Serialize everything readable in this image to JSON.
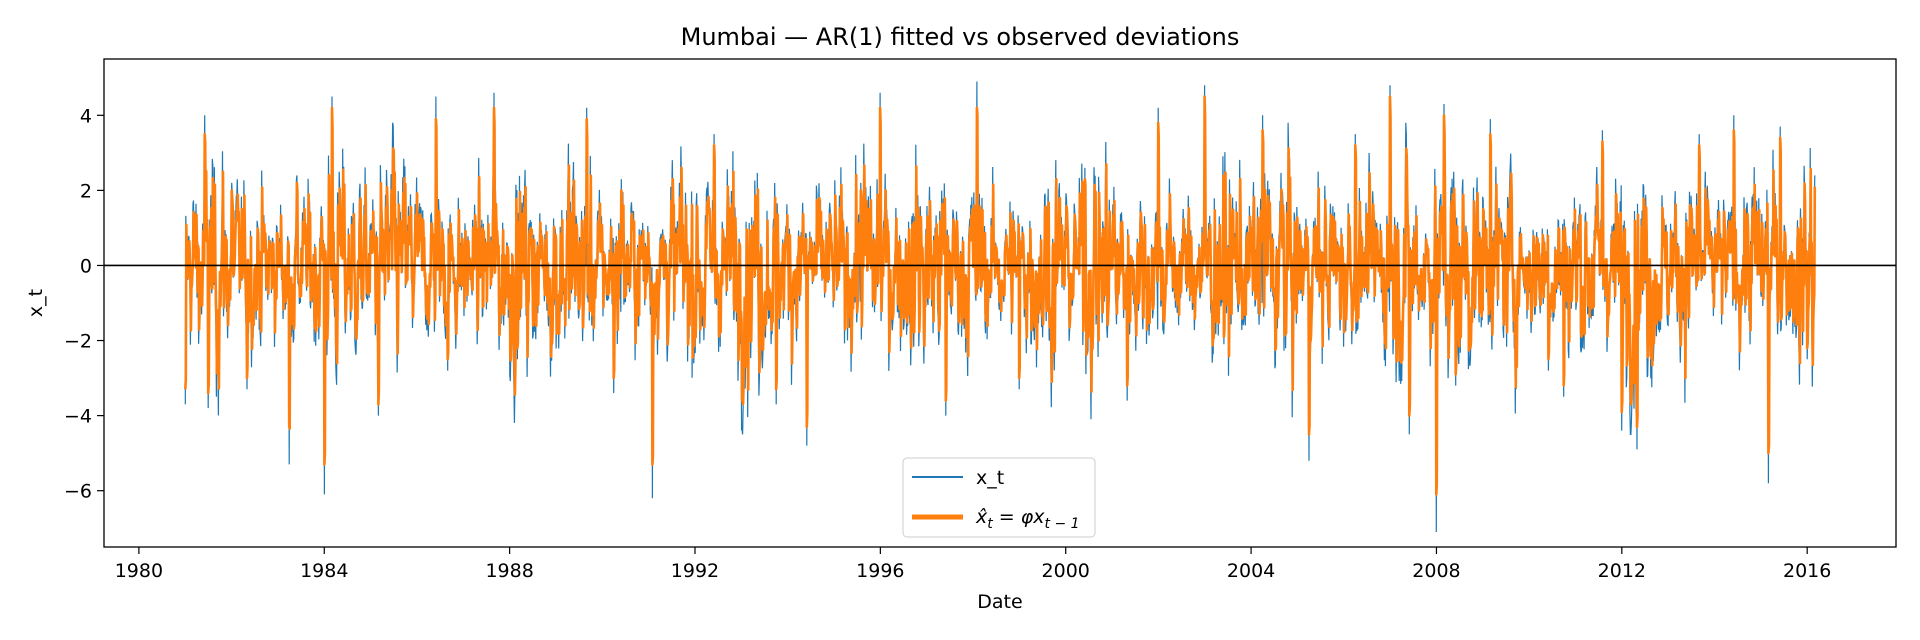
{
  "chart_data": {
    "type": "line",
    "title": "Mumbai — AR(1) fitted vs observed deviations",
    "xlabel": "Date",
    "ylabel": "x_t",
    "xlim": [
      "1979-04-01",
      "2017-12-01"
    ],
    "ylim": [
      -7.5,
      5.5
    ],
    "x_ticks": [
      "1980",
      "1984",
      "1988",
      "1992",
      "1996",
      "2000",
      "2004",
      "2008",
      "2012",
      "2016"
    ],
    "y_ticks": [
      4,
      2,
      0,
      -2,
      -4,
      -6
    ],
    "y_tick_labels": [
      "4",
      "2",
      "0",
      "−2",
      "−4",
      "−6"
    ],
    "zero_line": 0,
    "legend": {
      "placement": "lower center",
      "entries": [
        {
          "label": "x_t",
          "color": "#1f77b4"
        },
        {
          "label": "x̂_t = φx_{t−1}",
          "color": "#ff7f0e"
        }
      ]
    },
    "series": [
      {
        "name": "x_t",
        "color": "#1f77b4",
        "x": [
          "1981-01-01",
          "1981-06-01",
          "1981-07-01",
          "1982-01-01",
          "1982-05-01",
          "1983-04-01",
          "1983-06-01",
          "1984-01-01",
          "1984-03-01",
          "1985-03-01",
          "1986-06-01",
          "1986-09-01",
          "1987-09-01",
          "1988-03-01",
          "1989-09-01",
          "1990-04-01",
          "1990-06-01",
          "1991-02-01",
          "1992-06-01",
          "1993-10-01",
          "1994-06-01",
          "1995-08-01",
          "1996-01-01",
          "1997-06-01",
          "1998-02-01",
          "1999-01-01",
          "2000-06-01",
          "2001-05-01",
          "2002-01-01",
          "2003-01-01",
          "2003-06-01",
          "2004-04-01",
          "2005-04-01",
          "2006-04-01",
          "2007-01-01",
          "2007-06-01",
          "2008-01-01",
          "2008-03-01",
          "2008-06-01",
          "2009-03-01",
          "2010-06-01",
          "2010-10-01",
          "2011-08-01",
          "2012-01-01",
          "2012-05-01",
          "2013-09-01",
          "2014-06-01",
          "2015-03-01",
          "2015-06-01",
          "2016-01-01",
          "2016-03-01"
        ],
        "y": [
          -3.7,
          4.0,
          -3.8,
          2.2,
          -3.3,
          -5.3,
          2.4,
          -6.1,
          4.5,
          -4.0,
          4.5,
          -2.8,
          4.6,
          -2.5,
          4.2,
          -3.4,
          2.3,
          -6.2,
          3.5,
          -3.7,
          -4.8,
          2.2,
          4.6,
          -4.0,
          4.9,
          -3.3,
          2.6,
          -3.6,
          4.2,
          4.8,
          -2.1,
          4.0,
          -5.2,
          3.5,
          4.8,
          -4.5,
          -7.1,
          4.3,
          -3.2,
          3.9,
          -2.8,
          -3.5,
          3.6,
          -4.4,
          -4.9,
          3.5,
          4.0,
          -5.8,
          3.7,
          -2.5,
          2.4
        ],
        "note_dense": true
      },
      {
        "name": "x̂_t = φx_{t−1}",
        "color": "#ff7f0e",
        "x": [
          "1981-01-01",
          "1981-06-01",
          "1981-07-01",
          "1982-01-01",
          "1982-05-01",
          "1983-04-01",
          "1983-06-01",
          "1984-01-01",
          "1984-03-01",
          "1985-03-01",
          "1986-06-01",
          "1986-09-01",
          "1987-09-01",
          "1988-03-01",
          "1989-09-01",
          "1990-04-01",
          "1990-06-01",
          "1991-02-01",
          "1992-06-01",
          "1993-10-01",
          "1994-06-01",
          "1995-08-01",
          "1996-01-01",
          "1997-06-01",
          "1998-02-01",
          "1999-01-01",
          "2000-06-01",
          "2001-05-01",
          "2002-01-01",
          "2003-01-01",
          "2003-06-01",
          "2004-04-01",
          "2005-04-01",
          "2006-04-01",
          "2007-01-01",
          "2007-06-01",
          "2008-01-01",
          "2008-03-01",
          "2008-06-01",
          "2009-03-01",
          "2010-06-01",
          "2010-10-01",
          "2011-08-01",
          "2012-01-01",
          "2012-05-01",
          "2013-09-01",
          "2014-06-01",
          "2015-03-01",
          "2015-06-01",
          "2016-01-01",
          "2016-03-01"
        ],
        "y": [
          -3.3,
          3.5,
          -3.4,
          2.0,
          -3.0,
          -4.3,
          2.2,
          -5.3,
          4.2,
          -3.7,
          3.9,
          -2.5,
          4.2,
          -2.2,
          3.9,
          -3.0,
          2.0,
          -5.3,
          3.2,
          -3.3,
          -4.3,
          2.0,
          4.2,
          -3.6,
          4.2,
          -3.0,
          2.3,
          -3.2,
          3.8,
          4.5,
          -1.9,
          3.6,
          -4.5,
          3.2,
          4.5,
          -4.0,
          -6.1,
          4.0,
          -2.9,
          3.5,
          -2.5,
          -3.2,
          3.3,
          -3.9,
          -4.3,
          3.2,
          3.6,
          -5.0,
          3.4,
          -2.2,
          2.1
        ]
      }
    ]
  }
}
